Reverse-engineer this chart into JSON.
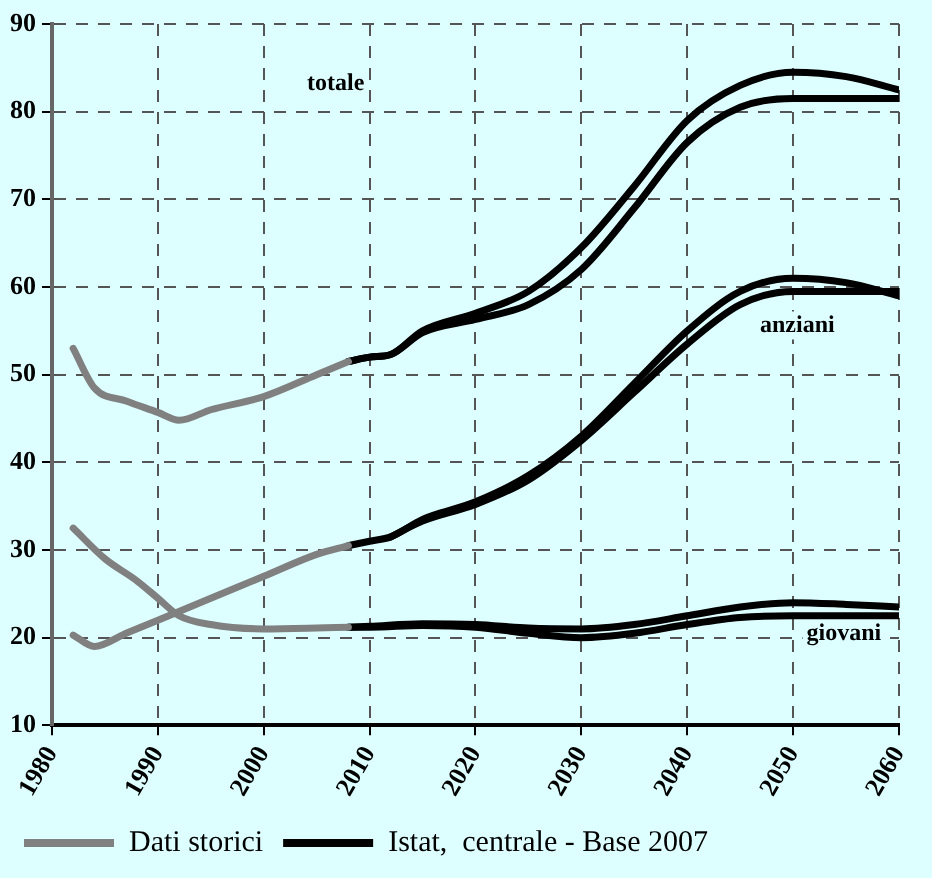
{
  "chart_data": {
    "type": "line",
    "xlim": [
      1980,
      2060
    ],
    "xticks": [
      1980,
      1990,
      2000,
      2010,
      2020,
      2030,
      2040,
      2050,
      2060
    ],
    "ylim": [
      10,
      90
    ],
    "yticks": [
      10,
      20,
      30,
      40,
      50,
      60,
      70,
      80,
      90
    ],
    "grid": true,
    "legend": "bottom",
    "marker": "none",
    "line_style": "solid",
    "series": [
      {
        "name": "Dati storici",
        "color": "#808080",
        "x": [
          1982,
          1984,
          1987,
          1990,
          1992,
          1995,
          2000,
          2005,
          2008
        ],
        "values": [
          53,
          48.5,
          47,
          45.7,
          44.8,
          46,
          47.5,
          50,
          51.5
        ]
      },
      {
        "color": "#808080",
        "x": [
          1982,
          1984,
          1987,
          1990,
          1992,
          1995,
          2000,
          2005,
          2008
        ],
        "values": [
          20.3,
          19,
          20.5,
          22,
          23,
          24.5,
          27,
          29.5,
          30.5
        ]
      },
      {
        "color": "#808080",
        "x": [
          1982,
          1985,
          1988,
          1990,
          1992,
          1995,
          2000,
          2005,
          2008
        ],
        "values": [
          32.5,
          29,
          26.5,
          24.5,
          22.5,
          21.5,
          21,
          21.1,
          21.2
        ]
      },
      {
        "name": "Istat,  centrale - Base 2007",
        "color": "#000000",
        "x": [
          2008,
          2010,
          2012,
          2015,
          2020,
          2025,
          2030,
          2035,
          2040,
          2045,
          2050,
          2055,
          2060
        ],
        "values": [
          51.5,
          52,
          52.3,
          55,
          57,
          59.5,
          64.5,
          71.5,
          79,
          83,
          84.5,
          84,
          82.5
        ]
      },
      {
        "color": "#000000",
        "x": [
          2008,
          2010,
          2012,
          2015,
          2020,
          2025,
          2030,
          2035,
          2040,
          2045,
          2050,
          2055,
          2060
        ],
        "values": [
          51.5,
          52,
          52.3,
          54.8,
          56.3,
          58,
          62,
          69,
          76.5,
          80.5,
          81.5,
          81.5,
          81.5
        ]
      },
      {
        "color": "#000000",
        "x": [
          2008,
          2010,
          2012,
          2015,
          2020,
          2025,
          2030,
          2035,
          2040,
          2045,
          2050,
          2055,
          2060
        ],
        "values": [
          30.5,
          31,
          31.5,
          33.5,
          35.5,
          38.5,
          43,
          49,
          55,
          59.5,
          61,
          60.5,
          59
        ]
      },
      {
        "color": "#000000",
        "x": [
          2012,
          2015,
          2020,
          2025,
          2030,
          2035,
          2040,
          2045,
          2050,
          2055,
          2060
        ],
        "values": [
          31.5,
          33.3,
          35.2,
          38,
          42.5,
          48,
          53.5,
          58,
          59.5,
          59.5,
          59.5
        ]
      },
      {
        "color": "#000000",
        "x": [
          2008,
          2010,
          2015,
          2020,
          2025,
          2030,
          2035,
          2040,
          2045,
          2050,
          2055,
          2060
        ],
        "values": [
          21.2,
          21.3,
          21.6,
          21.5,
          21.1,
          21,
          21.5,
          22.5,
          23.5,
          24,
          23.8,
          23.5
        ]
      },
      {
        "color": "#000000",
        "x": [
          2008,
          2010,
          2015,
          2020,
          2025,
          2030,
          2035,
          2040,
          2045,
          2050,
          2055,
          2060
        ],
        "values": [
          21.2,
          21.2,
          21.4,
          21.2,
          20.5,
          20,
          20.5,
          21.5,
          22.3,
          22.5,
          22.5,
          22.5
        ]
      }
    ],
    "annotations": [
      "totale",
      "anziani",
      "giovani"
    ]
  }
}
